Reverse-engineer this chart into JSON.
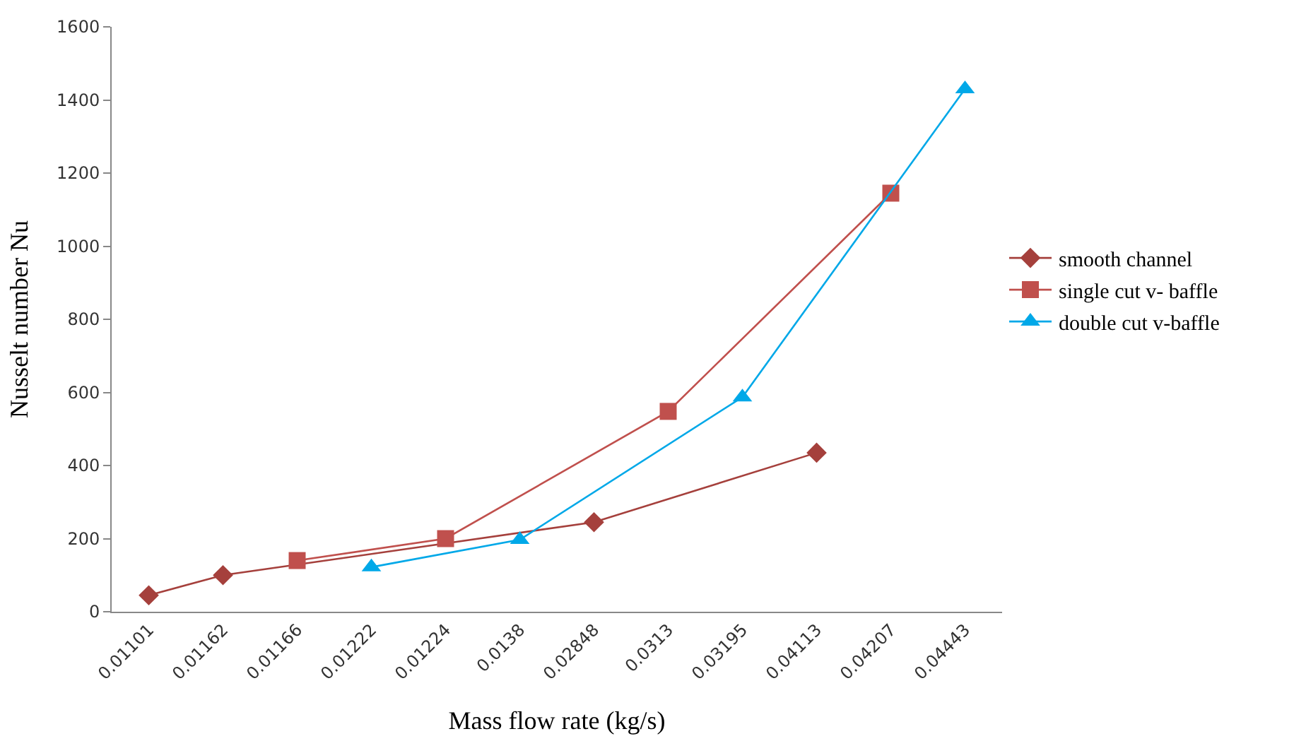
{
  "chart_data": {
    "type": "line",
    "xlabel": "Mass flow rate (kg/s)",
    "ylabel": "Nusselt number Nu",
    "categories": [
      "0.01101",
      "0.01162",
      "0.01166",
      "0.01222",
      "0.01224",
      "0.0138",
      "0.02848",
      "0.0313",
      "0.03195",
      "0.04113",
      "0.04207",
      "0.04443"
    ],
    "series": [
      {
        "name": "smooth channel",
        "color": "#a5403c",
        "marker": "diamond",
        "values": [
          45,
          100,
          null,
          null,
          null,
          null,
          245,
          null,
          null,
          435,
          null,
          null
        ]
      },
      {
        "name": "single cut v- baffle",
        "color": "#c0504d",
        "marker": "square",
        "values": [
          null,
          null,
          140,
          null,
          200,
          null,
          null,
          548,
          null,
          null,
          1145,
          null
        ]
      },
      {
        "name": "double cut v-baffle",
        "color": "#00a8e8",
        "marker": "triangle",
        "values": [
          null,
          null,
          null,
          122,
          null,
          197,
          null,
          null,
          587,
          null,
          null,
          1430
        ]
      }
    ],
    "ylim": [
      0,
      1600
    ],
    "yticks": [
      0,
      200,
      400,
      600,
      800,
      1000,
      1200,
      1400,
      1600
    ],
    "legend": "right"
  }
}
